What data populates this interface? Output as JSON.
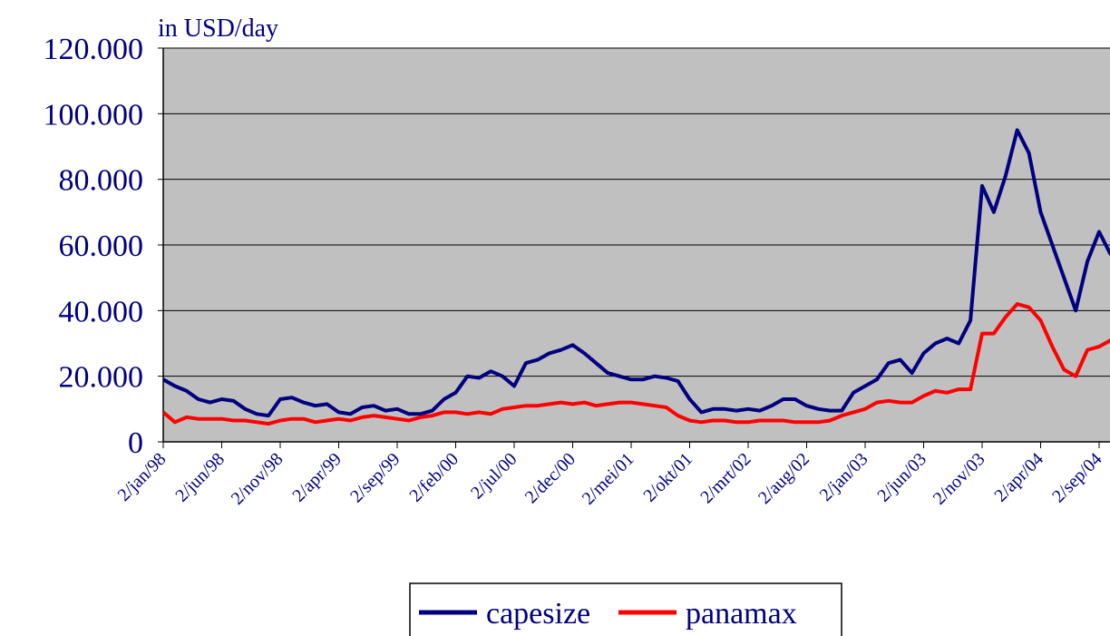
{
  "chart_data": {
    "type": "line",
    "subtitle": "in USD/day",
    "categories": [
      "2/jan/98",
      null,
      null,
      null,
      null,
      "2/jun/98",
      null,
      null,
      null,
      null,
      "2/nov/98",
      null,
      null,
      null,
      null,
      "2/apr/99",
      null,
      null,
      null,
      null,
      "2/sep/99",
      null,
      null,
      null,
      null,
      "2/feb/00",
      null,
      null,
      null,
      null,
      "2/jul/00",
      null,
      null,
      null,
      null,
      "2/dec/00",
      null,
      null,
      null,
      null,
      "2/mei/01",
      null,
      null,
      null,
      null,
      "2/okt/01",
      null,
      null,
      null,
      null,
      "2/mrt/02",
      null,
      null,
      null,
      null,
      "2/aug/02",
      null,
      null,
      null,
      null,
      "2/jan/03",
      null,
      null,
      null,
      null,
      "2/jun/03",
      null,
      null,
      null,
      null,
      "2/nov/03",
      null,
      null,
      null,
      null,
      "2/apr/04",
      null,
      null,
      null,
      null,
      "2/sep/04",
      null
    ],
    "series": [
      {
        "name": "capesize",
        "color": "#000080",
        "values": [
          19000,
          17000,
          15500,
          13000,
          12000,
          13000,
          12500,
          10000,
          8500,
          8000,
          13000,
          13500,
          12000,
          11000,
          11500,
          9000,
          8500,
          10500,
          11000,
          9500,
          10000,
          8500,
          8500,
          9500,
          13000,
          15000,
          20000,
          19500,
          21500,
          20000,
          17000,
          24000,
          25000,
          27000,
          28000,
          29500,
          27000,
          24000,
          21000,
          20000,
          19000,
          19000,
          20000,
          19500,
          18500,
          13000,
          9000,
          10000,
          10000,
          9500,
          10000,
          9500,
          11000,
          13000,
          13000,
          11000,
          10000,
          9500,
          9500,
          15000,
          17000,
          19000,
          24000,
          25000,
          21000,
          27000,
          30000,
          31500,
          30000,
          37000,
          78000,
          70000,
          81000,
          95000,
          88000,
          70000,
          60000,
          50000,
          40000,
          55000,
          64000,
          57000
        ]
      },
      {
        "name": "panamax",
        "color": "#ff0000",
        "values": [
          9000,
          6000,
          7500,
          7000,
          7000,
          7000,
          6500,
          6500,
          6000,
          5500,
          6500,
          7000,
          7000,
          6000,
          6500,
          7000,
          6500,
          7500,
          8000,
          7500,
          7000,
          6500,
          7500,
          8000,
          9000,
          9000,
          8500,
          9000,
          8500,
          10000,
          10500,
          11000,
          11000,
          11500,
          12000,
          11500,
          12000,
          11000,
          11500,
          12000,
          12000,
          11500,
          11000,
          10500,
          8000,
          6500,
          6000,
          6500,
          6500,
          6000,
          6000,
          6500,
          6500,
          6500,
          6000,
          6000,
          6000,
          6500,
          8000,
          9000,
          10000,
          12000,
          12500,
          12000,
          12000,
          14000,
          15500,
          15000,
          16000,
          16000,
          33000,
          33000,
          38000,
          42000,
          41000,
          37000,
          29000,
          22000,
          20000,
          28000,
          29000,
          31000
        ]
      }
    ],
    "ylim": [
      0,
      120000
    ],
    "yticks": [
      {
        "value": 0,
        "label": "0"
      },
      {
        "value": 20000,
        "label": "20.000"
      },
      {
        "value": 40000,
        "label": "40.000"
      },
      {
        "value": 60000,
        "label": "60.000"
      },
      {
        "value": 80000,
        "label": "80.000"
      },
      {
        "value": 100000,
        "label": "100.000"
      },
      {
        "value": 120000,
        "label": "120.000"
      }
    ],
    "grid": true,
    "legend": "bottom"
  }
}
